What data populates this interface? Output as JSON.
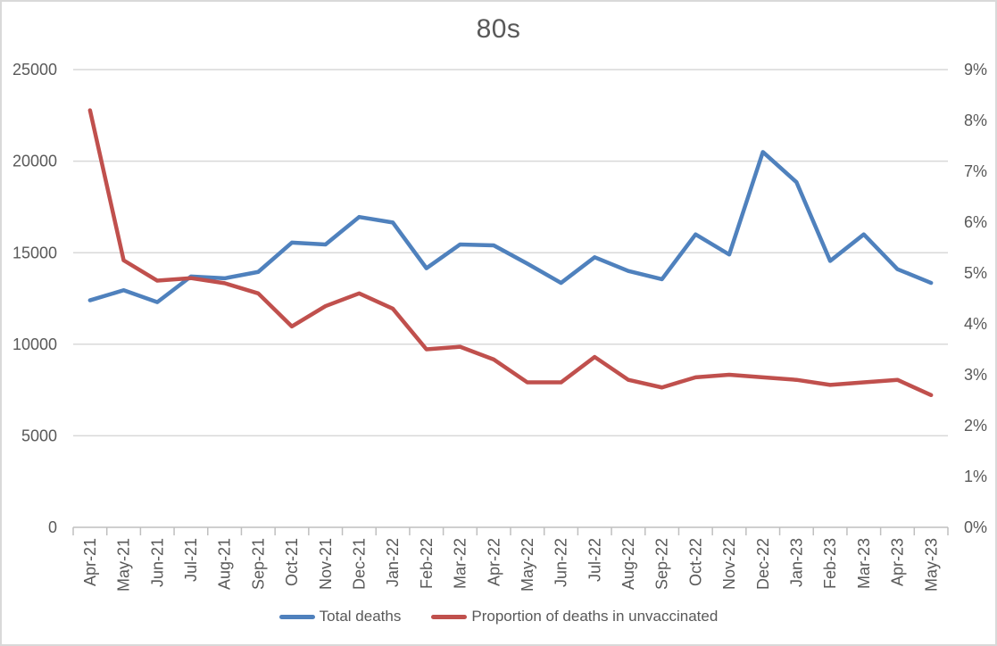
{
  "chart_data": {
    "type": "line",
    "title": "80s",
    "categories": [
      "Apr-21",
      "May-21",
      "Jun-21",
      "Jul-21",
      "Aug-21",
      "Sep-21",
      "Oct-21",
      "Nov-21",
      "Dec-21",
      "Jan-22",
      "Feb-22",
      "Mar-22",
      "Apr-22",
      "May-22",
      "Jun-22",
      "Jul-22",
      "Aug-22",
      "Sep-22",
      "Oct-22",
      "Nov-22",
      "Dec-22",
      "Jan-23",
      "Feb-23",
      "Mar-23",
      "Apr-23",
      "May-23"
    ],
    "series": [
      {
        "name": "Total deaths",
        "axis": "left",
        "color": "#4f81bd",
        "values": [
          12400,
          12950,
          12300,
          13700,
          13600,
          13950,
          15550,
          15450,
          16950,
          16650,
          14150,
          15450,
          15400,
          14400,
          13350,
          14750,
          14000,
          13550,
          16000,
          14900,
          20500,
          18850,
          14550,
          16000,
          14100,
          13350
        ]
      },
      {
        "name": "Proportion of deaths in unvaccinated",
        "axis": "right",
        "color": "#c0504d",
        "unit": "%",
        "values": [
          8.2,
          5.25,
          4.85,
          4.9,
          4.8,
          4.6,
          3.95,
          4.35,
          4.6,
          4.3,
          3.5,
          3.55,
          3.3,
          2.85,
          2.85,
          3.35,
          2.9,
          2.75,
          2.95,
          3.0,
          2.95,
          2.9,
          2.8,
          2.85,
          2.9,
          2.6
        ]
      }
    ],
    "left_axis": {
      "min": 0,
      "max": 25000,
      "step": 5000,
      "tick_labels": [
        "25000",
        "20000",
        "15000",
        "10000",
        "5000",
        "0"
      ]
    },
    "right_axis": {
      "min": 0,
      "max": 9,
      "step": 1,
      "tick_labels": [
        "9%",
        "8%",
        "7%",
        "6%",
        "5%",
        "4%",
        "3%",
        "2%",
        "1%",
        "0%"
      ]
    },
    "grid": "horizontal",
    "legend_position": "bottom",
    "colors": {
      "text": "#595959",
      "gridline": "#d9d9d9",
      "axis_line": "#bfbfbf",
      "background": "#ffffff",
      "border": "#d9d9d9"
    }
  }
}
